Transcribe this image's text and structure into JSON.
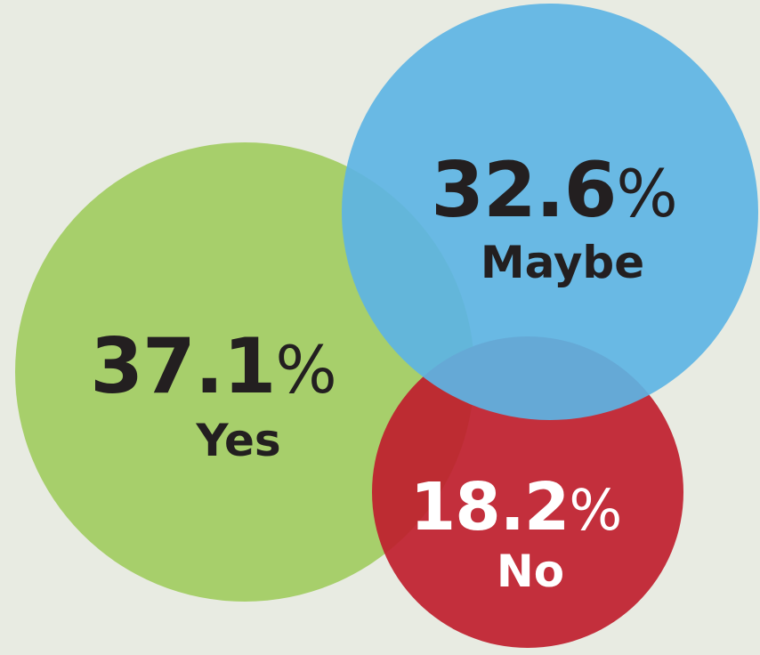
{
  "chart_data": {
    "type": "venn",
    "series": [
      {
        "name": "Yes",
        "value": 37.1,
        "value_label": "37.1",
        "unit": "%",
        "color": "#a3cd64"
      },
      {
        "name": "Maybe",
        "value": 32.6,
        "value_label": "32.6",
        "unit": "%",
        "color": "#5db4e4"
      },
      {
        "name": "No",
        "value": 18.2,
        "value_label": "18.2",
        "unit": "%",
        "color": "#bf1e2e"
      }
    ],
    "background": "#e8ebe2",
    "label_colors": {
      "dark": "#231f20",
      "light": "#ffffff"
    }
  }
}
